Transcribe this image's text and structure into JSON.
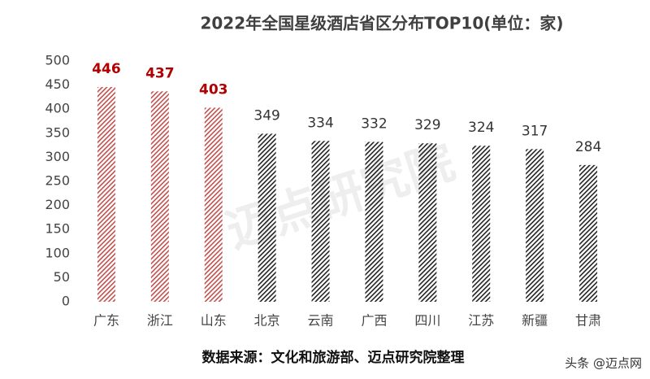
{
  "chart_data": {
    "type": "bar",
    "title": "2022年全国星级酒店省区分布TOP10(单位：家)",
    "source": "数据来源：文化和旅游部、迈点研究院整理",
    "watermark": "迈点研究院",
    "credit": "头条 @迈点网",
    "categories": [
      "广东",
      "浙江",
      "山东",
      "北京",
      "云南",
      "广西",
      "四川",
      "江苏",
      "新疆",
      "甘肃"
    ],
    "values": [
      446,
      437,
      403,
      349,
      334,
      332,
      329,
      324,
      317,
      284
    ],
    "colors": [
      "#c0504d",
      "#c0504d",
      "#c0504d",
      "#222222",
      "#222222",
      "#222222",
      "#222222",
      "#222222",
      "#222222",
      "#222222"
    ],
    "label_colors": [
      "#b00000",
      "#b00000",
      "#b00000",
      "#333333",
      "#333333",
      "#333333",
      "#333333",
      "#333333",
      "#333333",
      "#333333"
    ],
    "label_bold": [
      true,
      true,
      true,
      false,
      false,
      false,
      false,
      false,
      false,
      false
    ],
    "ylim": [
      0,
      500
    ],
    "yticks": [
      0,
      50,
      100,
      150,
      200,
      250,
      300,
      350,
      400,
      450,
      500
    ],
    "grid": false
  }
}
